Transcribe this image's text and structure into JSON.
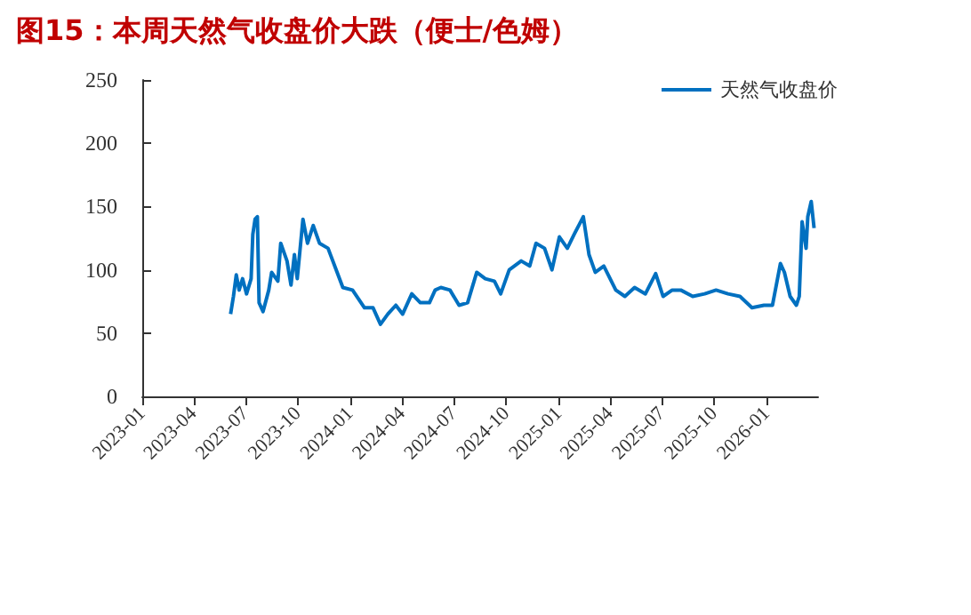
{
  "chart_data": {
    "type": "line",
    "title": "图15：本周天然气收盘价大跌（便士/色姆）",
    "series": [
      {
        "name": "天然气收盘价",
        "color": "#0070c0",
        "x": [
          "2023-06-05",
          "2023-06-10",
          "2023-06-15",
          "2023-06-20",
          "2023-06-26",
          "2023-07-03",
          "2023-07-11",
          "2023-07-14",
          "2023-07-18",
          "2023-07-22",
          "2023-07-25",
          "2023-08-01",
          "2023-08-11",
          "2023-08-16",
          "2023-08-27",
          "2023-09-01",
          "2023-09-12",
          "2023-09-19",
          "2023-09-25",
          "2023-09-30",
          "2023-10-10",
          "2023-10-18",
          "2023-10-28",
          "2023-11-08",
          "2023-11-23",
          "2023-12-09",
          "2023-12-19",
          "2024-01-05",
          "2024-01-26",
          "2024-02-10",
          "2024-02-23",
          "2024-03-07",
          "2024-03-21",
          "2024-04-02",
          "2024-04-18",
          "2024-05-03",
          "2024-05-19",
          "2024-05-29",
          "2024-06-08",
          "2024-06-24",
          "2024-07-10",
          "2024-07-25",
          "2024-08-10",
          "2024-08-25",
          "2024-09-10",
          "2024-09-21",
          "2024-10-06",
          "2024-10-27",
          "2024-11-11",
          "2024-11-22",
          "2024-12-07",
          "2024-12-20",
          "2025-01-02",
          "2025-01-16",
          "2025-01-28",
          "2025-02-13",
          "2025-02-23",
          "2025-03-06",
          "2025-03-21",
          "2025-04-11",
          "2025-04-27",
          "2025-05-14",
          "2025-06-02",
          "2025-06-20",
          "2025-07-03",
          "2025-07-19",
          "2025-08-03",
          "2025-08-24",
          "2025-09-14",
          "2025-10-04",
          "2025-10-25",
          "2025-11-15",
          "2025-12-06",
          "2025-12-27",
          "2026-01-11",
          "2026-01-25",
          "2026-02-01",
          "2026-02-11",
          "2026-02-22",
          "2026-02-27",
          "2026-03-04",
          "2026-03-11",
          "2026-03-14",
          "2026-03-20",
          "2026-03-25"
        ],
        "values": [
          65,
          79,
          96,
          84,
          93,
          81,
          93,
          128,
          140,
          142,
          74,
          67,
          84,
          98,
          91,
          121,
          107,
          88,
          112,
          93,
          140,
          121,
          135,
          121,
          117,
          98,
          86,
          84,
          70,
          70,
          57,
          65,
          72,
          65,
          81,
          74,
          74,
          84,
          86,
          84,
          72,
          74,
          98,
          93,
          91,
          81,
          100,
          107,
          103,
          121,
          117,
          100,
          126,
          117,
          128,
          142,
          112,
          98,
          103,
          84,
          79,
          86,
          81,
          97,
          79,
          84,
          84,
          79,
          81,
          84,
          81,
          79,
          70,
          72,
          72,
          105,
          98,
          79,
          72,
          79,
          138,
          117,
          142,
          154,
          133
        ]
      }
    ],
    "xlim": [
      "2023-01",
      "2026-04"
    ],
    "xticks": [
      "2023-01",
      "2023-04",
      "2023-07",
      "2023-10",
      "2024-01",
      "2024-04",
      "2024-07",
      "2024-10",
      "2025-01",
      "2025-04",
      "2025-07",
      "2025-10",
      "2026-01"
    ],
    "ylim": [
      0,
      250
    ],
    "yticks": [
      0,
      50,
      100,
      150,
      200,
      250
    ],
    "legend": "top right",
    "grid": false,
    "marker": "none",
    "line_style": "solid"
  }
}
